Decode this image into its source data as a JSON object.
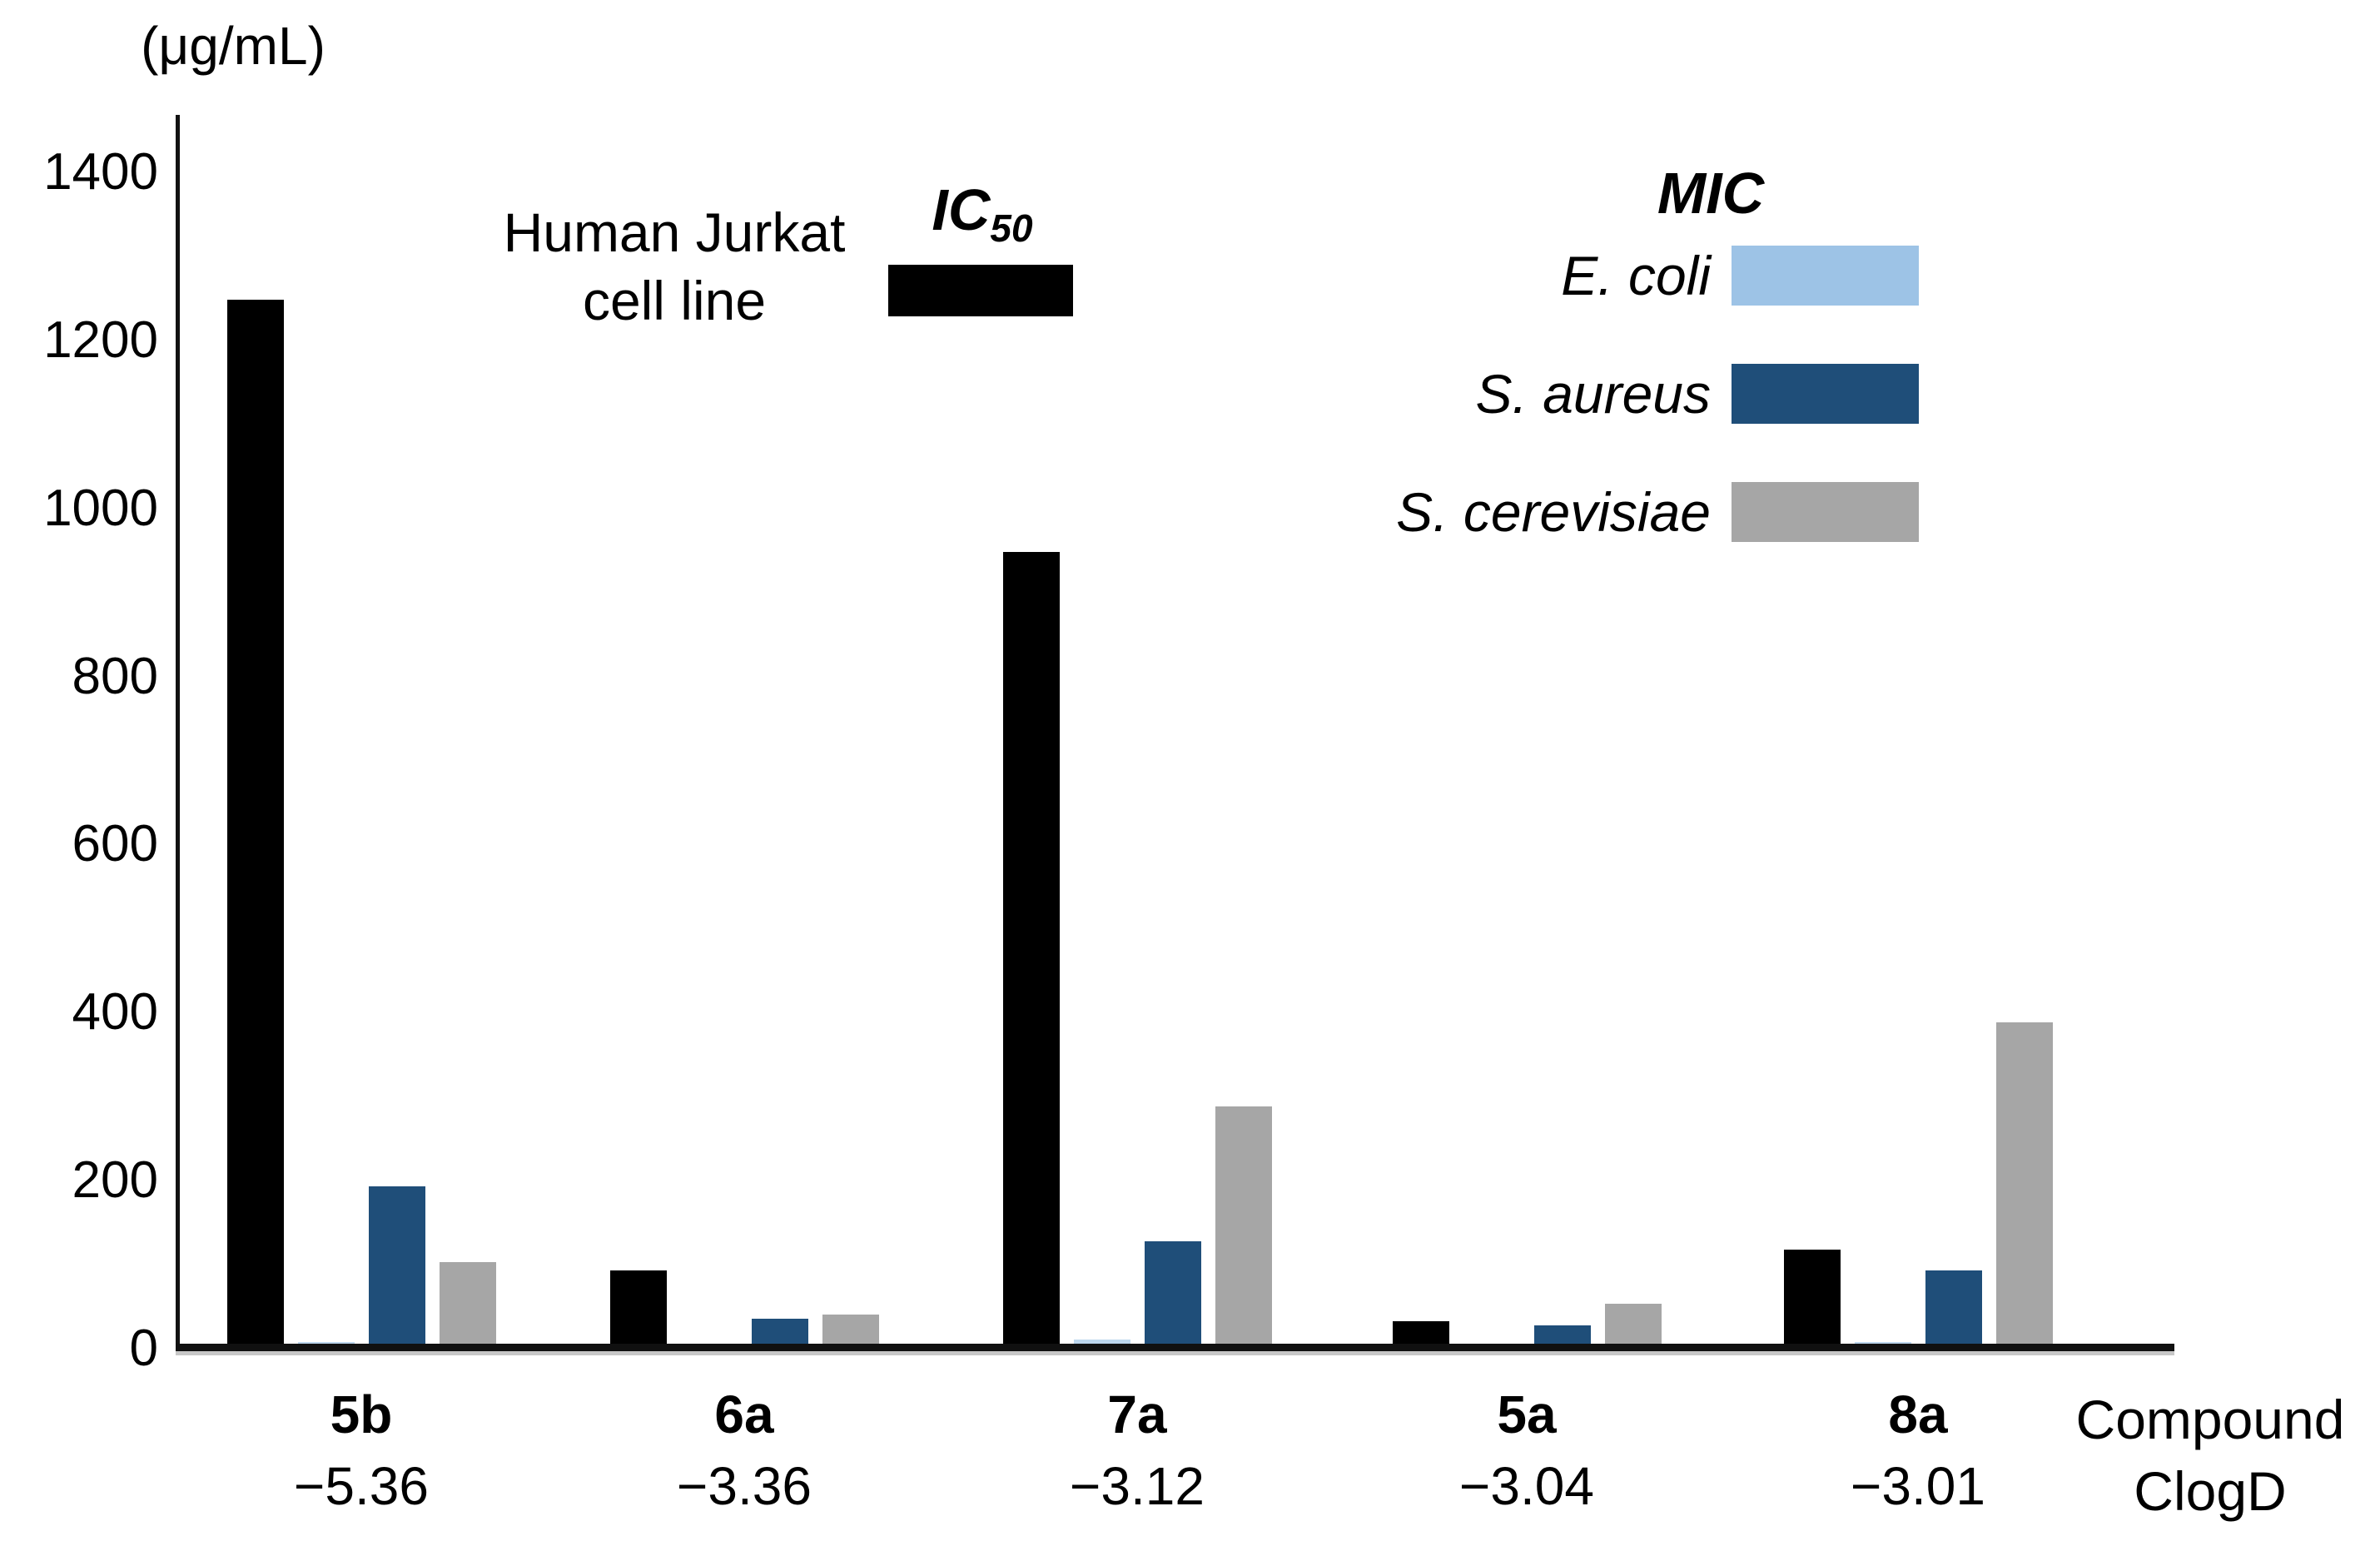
{
  "unit_label": "(μg/mL)",
  "legend": {
    "ic50": {
      "series_line1": "Human Jurkat",
      "series_line2": "cell line",
      "title_main": "IC",
      "title_sub": "50",
      "swatch_color": "#000000"
    },
    "mic": {
      "title": "MIC",
      "items": [
        {
          "label": "E. coli",
          "color": "#9dc3e6"
        },
        {
          "label": "S. aureus",
          "color": "#1f4e79"
        },
        {
          "label": "S. cerevisiae",
          "color": "#a6a6a6"
        }
      ]
    }
  },
  "axis_caption": {
    "line1": "Compound",
    "line2": "ClogD"
  },
  "chart_data": {
    "type": "bar",
    "title": "",
    "xlabel": "Compound ClogD",
    "ylabel": "(μg/mL)",
    "ylim": [
      0,
      1400
    ],
    "yticks": [
      0,
      200,
      400,
      600,
      800,
      1000,
      1200,
      1400
    ],
    "grid": false,
    "legend_position": "top",
    "categories": [
      "5b",
      "6a",
      "7a",
      "5a",
      "8a"
    ],
    "clogd": [
      "−5.36",
      "−3.36",
      "−3.12",
      "−3.04",
      "−3.01"
    ],
    "series": [
      {
        "name": "Human Jurkat cell line IC50",
        "color": "#000000",
        "values": [
          1250,
          95,
          950,
          35,
          120
        ]
      },
      {
        "name": "E. coli MIC",
        "color": "#bdd7ee",
        "values": [
          10,
          3,
          13,
          3,
          10
        ]
      },
      {
        "name": "S. aureus MIC",
        "color": "#1f4e79",
        "values": [
          195,
          38,
          130,
          30,
          95
        ]
      },
      {
        "name": "S. cerevisiae MIC",
        "color": "#a6a6a6",
        "values": [
          105,
          43,
          290,
          55,
          390
        ]
      }
    ]
  }
}
